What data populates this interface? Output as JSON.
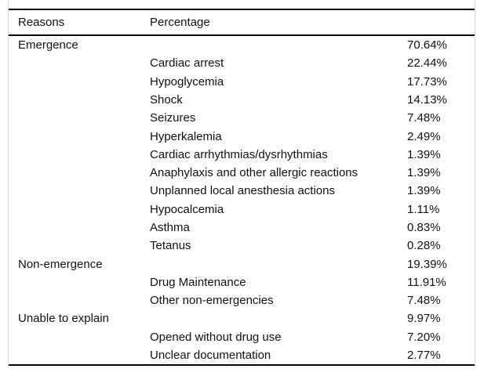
{
  "table": {
    "columns": [
      "Reasons",
      "Percentage"
    ],
    "rows": [
      {
        "category": "Emergence",
        "sub": "",
        "value": "70.64%"
      },
      {
        "category": "",
        "sub": "Cardiac arrest",
        "value": "22.44%"
      },
      {
        "category": "",
        "sub": "Hypoglycemia",
        "value": "17.73%"
      },
      {
        "category": "",
        "sub": "Shock",
        "value": "14.13%"
      },
      {
        "category": "",
        "sub": "Seizures",
        "value": "7.48%"
      },
      {
        "category": "",
        "sub": "Hyperkalemia",
        "value": "2.49%"
      },
      {
        "category": "",
        "sub": "Cardiac arrhythmias/dysrhythmias",
        "value": "1.39%"
      },
      {
        "category": "",
        "sub": "Anaphylaxis and other allergic reactions",
        "value": "1.39%"
      },
      {
        "category": "",
        "sub": "Unplanned local anesthesia actions",
        "value": "1.39%"
      },
      {
        "category": "",
        "sub": "Hypocalcemia",
        "value": "1.11%"
      },
      {
        "category": "",
        "sub": "Asthma",
        "value": "0.83%"
      },
      {
        "category": "",
        "sub": "Tetanus",
        "value": "0.28%"
      },
      {
        "category": "Non-emergence",
        "sub": "",
        "value": "19.39%"
      },
      {
        "category": "",
        "sub": "Drug Maintenance",
        "value": "11.91%"
      },
      {
        "category": "",
        "sub": "Other non-emergencies",
        "value": "7.48%"
      },
      {
        "category": "Unable to explain",
        "sub": "",
        "value": "9.97%"
      },
      {
        "category": "",
        "sub": "Opened without drug use",
        "value": "7.20%"
      },
      {
        "category": "",
        "sub": "Unclear documentation",
        "value": "2.77%"
      }
    ]
  },
  "colors": {
    "rule": "#000000",
    "frame_border": "#d9d9d9",
    "text": "#111111",
    "background": "#ffffff"
  }
}
